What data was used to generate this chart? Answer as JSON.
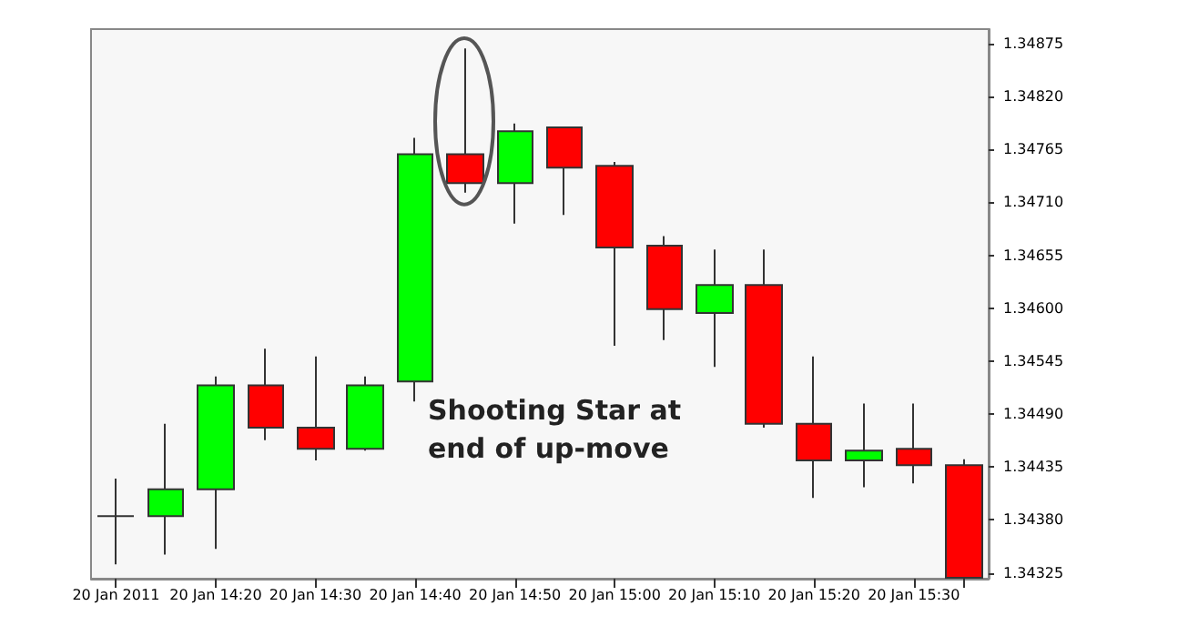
{
  "chart_data": {
    "type": "candlestick",
    "categories": [
      "20 Jan 2011",
      null,
      "20 Jan 14:20",
      null,
      "20 Jan 14:30",
      null,
      "20 Jan 14:40",
      null,
      "20 Jan 14:50",
      null,
      "20 Jan 15:00",
      null,
      "20 Jan 15:10",
      null,
      "20 Jan 15:20",
      null,
      "20 Jan 15:30",
      null
    ],
    "ohlc": [
      [
        1.34384,
        1.34423,
        1.34334,
        1.34384
      ],
      [
        1.34384,
        1.3448,
        1.34344,
        1.34412
      ],
      [
        1.34412,
        1.34529,
        1.3435,
        1.3452
      ],
      [
        1.3452,
        1.34558,
        1.34463,
        1.34476
      ],
      [
        1.34476,
        1.3455,
        1.34442,
        1.34454
      ],
      [
        1.34454,
        1.34529,
        1.34452,
        1.3452
      ],
      [
        1.34524,
        1.34777,
        1.34503,
        1.3476
      ],
      [
        1.3476,
        1.3487,
        1.3472,
        1.3473
      ],
      [
        1.3473,
        1.34792,
        1.34688,
        1.34784
      ],
      [
        1.34788,
        1.34788,
        1.34697,
        1.34746
      ],
      [
        1.34748,
        1.34752,
        1.34561,
        1.34663
      ],
      [
        1.34665,
        1.34675,
        1.34567,
        1.34599
      ],
      [
        1.34595,
        1.34661,
        1.34539,
        1.34624
      ],
      [
        1.34624,
        1.34661,
        1.34476,
        1.3448
      ],
      [
        1.3448,
        1.3455,
        1.34403,
        1.34442
      ],
      [
        1.34442,
        1.34501,
        1.34414,
        1.34452
      ],
      [
        1.34454,
        1.34501,
        1.34418,
        1.34437
      ],
      [
        1.34437,
        1.34443,
        1.3432,
        1.3432
      ]
    ],
    "colors": [
      "#333333",
      "#00ff00",
      "#00ff00",
      "#ff0000",
      "#ff0000",
      "#00ff00",
      "#00ff00",
      "#ff0000",
      "#00ff00",
      "#ff0000",
      "#ff0000",
      "#ff0000",
      "#00ff00",
      "#ff0000",
      "#ff0000",
      "#00ff00",
      "#ff0000",
      "#ff0000"
    ],
    "ylim": [
      1.34319,
      1.3489
    ],
    "yticks": [
      1.34325,
      {
        "value": 1.3438,
        "label": "1.34380"
      },
      1.34435,
      {
        "value": 1.3449,
        "label": "1.34490"
      },
      1.34545,
      {
        "value": 1.346,
        "label": "1.34600"
      },
      1.34655,
      {
        "value": 1.3471,
        "label": "1.34710"
      },
      1.34765,
      {
        "value": 1.3482,
        "label": "1.34820"
      },
      1.34875
    ],
    "annotations": [
      {
        "text": "Shooting Star at end of up-move"
      }
    ],
    "grid": false
  }
}
